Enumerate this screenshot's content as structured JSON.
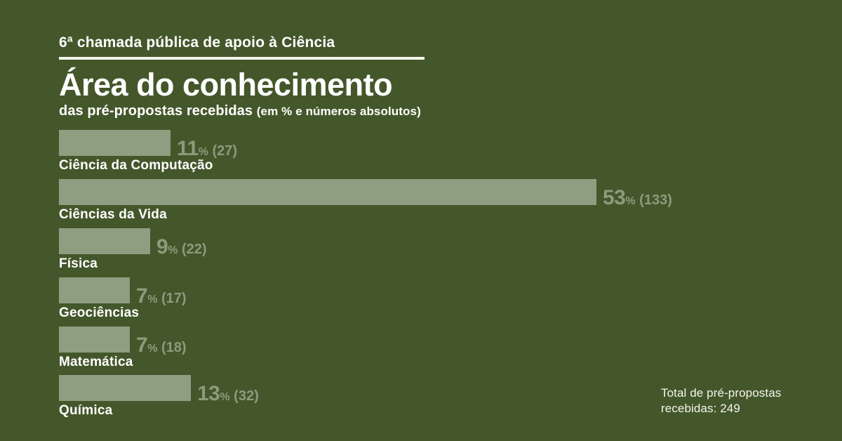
{
  "header": {
    "kicker": "6ª chamada pública de apoio à Ciência",
    "title": "Área do conhecimento",
    "subtitle": "das pré-propostas recebidas ",
    "subtitle_note": "(em % e números absolutos)"
  },
  "chart_data": {
    "type": "bar",
    "orientation": "horizontal",
    "title": "Área do conhecimento das pré-propostas recebidas (em % e números absolutos)",
    "categories": [
      "Ciência da Computação",
      "Ciências da Vida",
      "Física",
      "Geociências",
      "Matemática",
      "Química"
    ],
    "values_percent": [
      11,
      53,
      9,
      7,
      7,
      13
    ],
    "values_absolute": [
      27,
      133,
      22,
      17,
      18,
      32
    ],
    "percent_symbol": "%",
    "xlim_percent": [
      0,
      53
    ],
    "grid": false,
    "legend": false,
    "bar_color": "#8f9e80",
    "value_label_color": "#8c9b7c",
    "background_color": "#44572b",
    "total": 249
  },
  "footer": {
    "total_line1": "Total de pré-propostas",
    "total_line2": "recebidas: 249"
  }
}
